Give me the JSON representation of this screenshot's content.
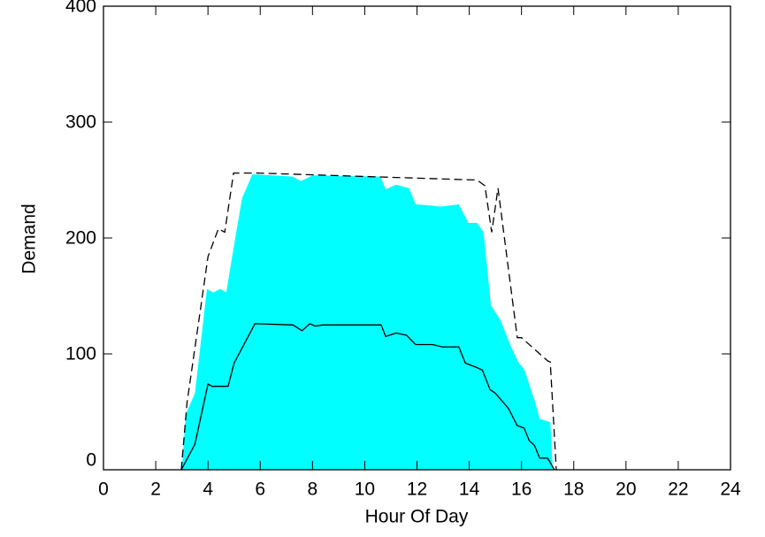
{
  "chart_data": {
    "type": "line",
    "xlabel": "Hour Of Day",
    "ylabel": "Demand",
    "xlim": [
      0,
      24
    ],
    "xticks": [
      0,
      2,
      4,
      6,
      8,
      10,
      12,
      14,
      16,
      18,
      20,
      22,
      24
    ],
    "ylim": [
      0,
      400
    ],
    "yticks": [
      0,
      100,
      200,
      300,
      400
    ],
    "series": [
      {
        "color": "#00ffff",
        "fill": true,
        "x": [
          3,
          3.15,
          3.5,
          3.96,
          4.2,
          4.47,
          4.7,
          5.0,
          5.3,
          5.7,
          7.25,
          7.55,
          8.0,
          10.6,
          10.8,
          11.2,
          11.7,
          11.95,
          12.5,
          12.9,
          13.6,
          13.97,
          14.3,
          14.55,
          14.83,
          15.2,
          15.6,
          15.9,
          16.1,
          16.5,
          16.7,
          17.1,
          17.2
        ],
        "values": [
          0,
          48,
          66,
          156,
          153,
          156,
          153,
          194,
          234,
          255,
          253,
          249,
          254,
          253,
          242,
          246,
          243,
          229,
          228,
          227,
          229,
          213,
          213,
          205,
          142,
          129,
          106,
          92,
          87,
          60,
          44,
          41,
          0
        ]
      },
      {
        "color": "#000000",
        "dash": true,
        "x": [
          2.98,
          3.2,
          3.76,
          4.0,
          4.4,
          4.64,
          4.98,
          5.86,
          14.3,
          14.6,
          14.86,
          15.1,
          15.84,
          16.0,
          17.0,
          17.1,
          17.33
        ],
        "values": [
          0,
          58,
          146,
          184,
          208,
          205,
          256,
          256,
          250,
          245,
          205,
          243,
          114,
          114,
          94,
          93,
          0
        ]
      },
      {
        "color": "#000000",
        "x": [
          2.98,
          3.5,
          4.0,
          4.16,
          4.77,
          5.0,
          5.8,
          7.25,
          7.6,
          7.9,
          8.1,
          8.4,
          10.63,
          10.8,
          11.2,
          11.6,
          11.95,
          12.6,
          12.96,
          13.6,
          13.85,
          14.2,
          14.5,
          14.8,
          15.0,
          15.5,
          15.84,
          16.1,
          16.3,
          16.5,
          16.7,
          17.0,
          17.26
        ],
        "values": [
          0,
          22,
          74,
          72,
          72,
          92,
          126,
          125,
          120,
          126,
          124,
          125,
          125,
          115,
          118,
          116,
          108,
          108,
          106,
          106,
          92,
          89,
          86,
          69,
          66,
          53,
          38,
          36,
          25,
          21,
          10,
          10,
          0
        ]
      }
    ]
  }
}
